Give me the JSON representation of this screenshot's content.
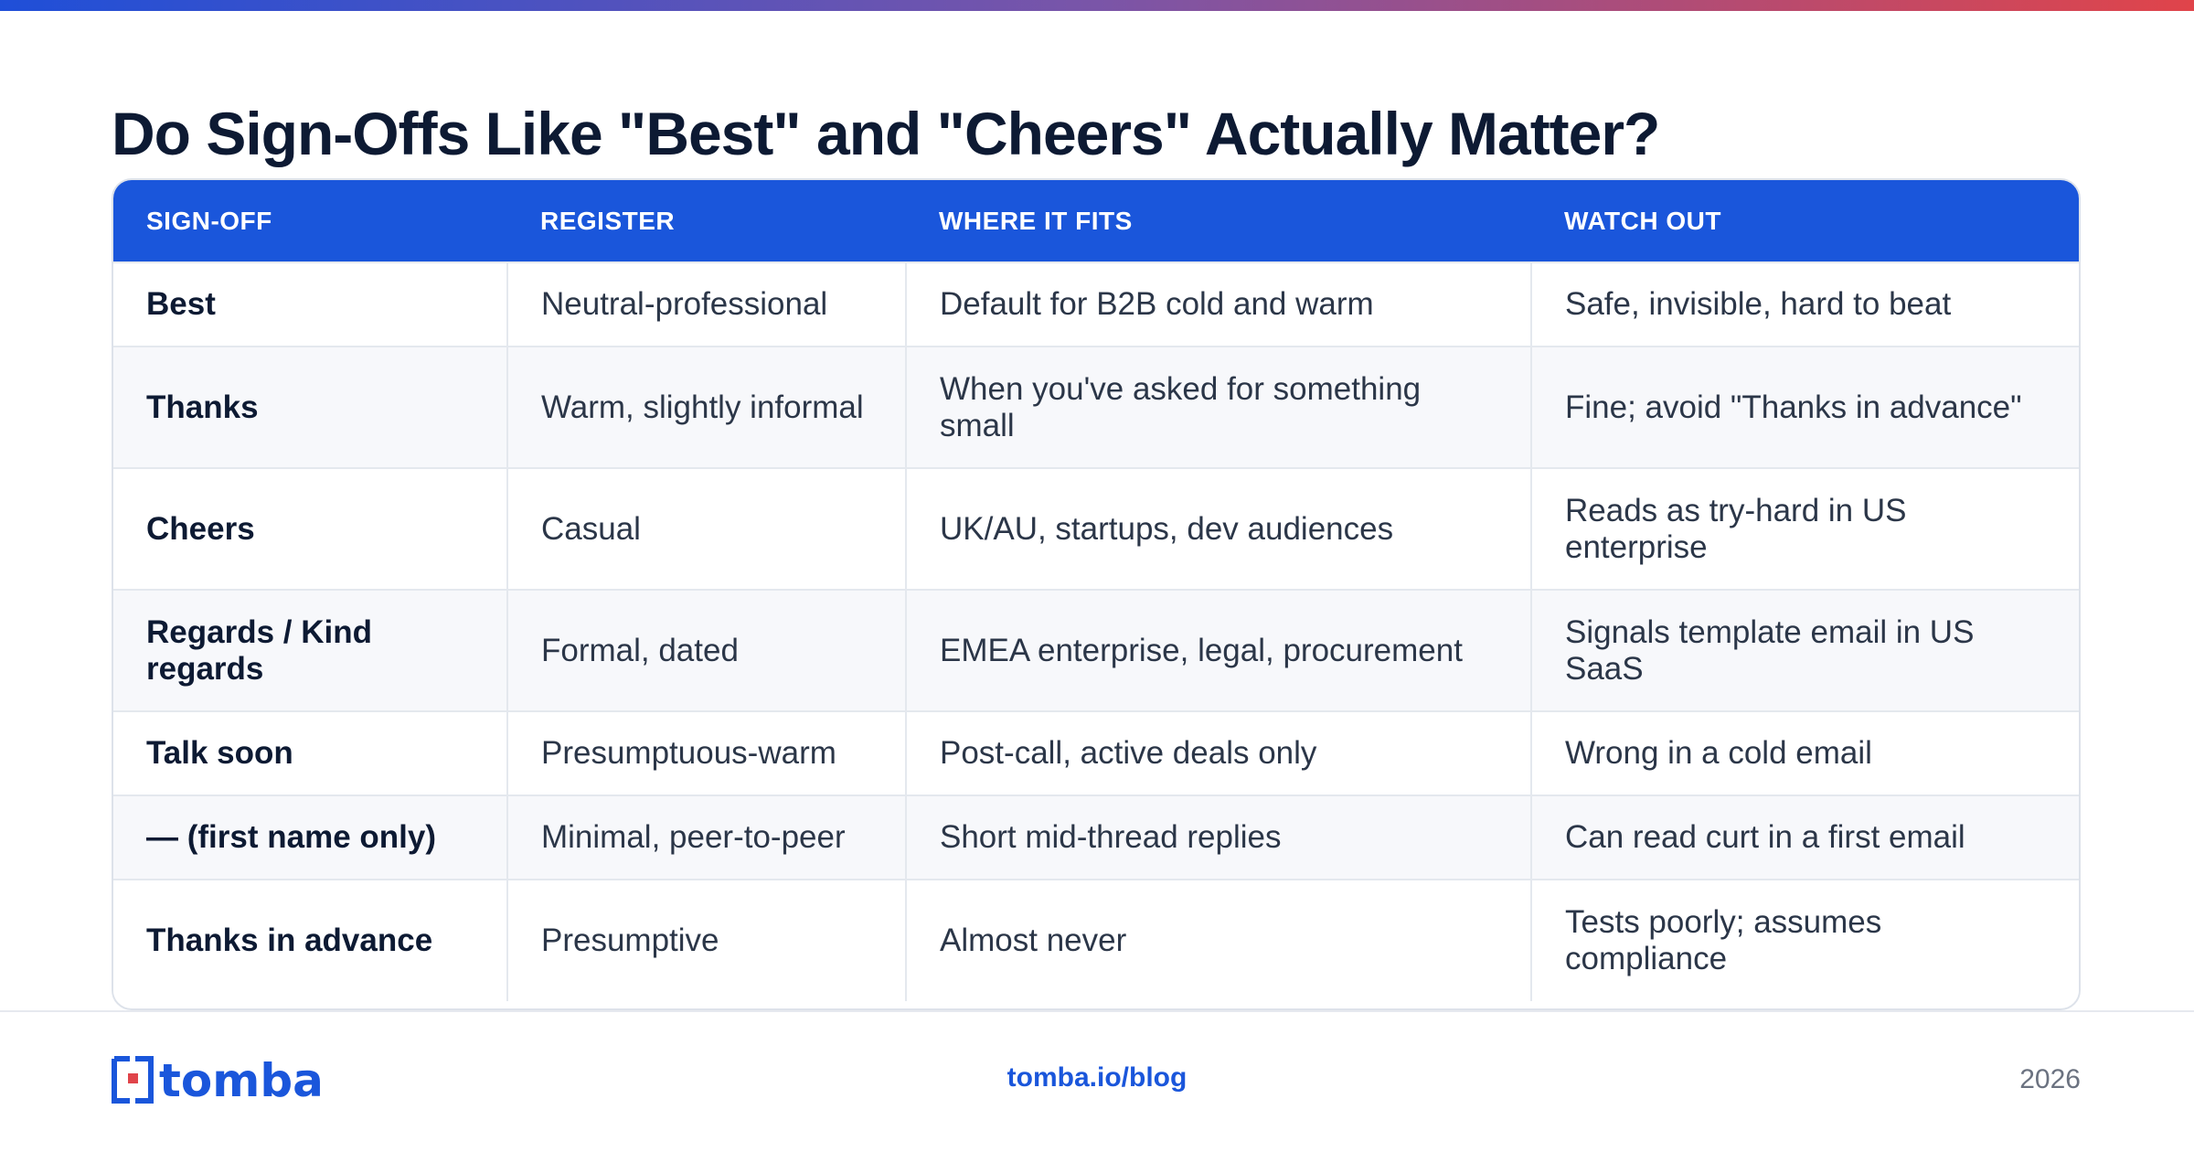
{
  "title": "Do Sign-Offs Like \"Best\" and \"Cheers\" Actually Matter?",
  "colors": {
    "header_bg": "#1a56db",
    "accent_gradient": [
      "#1f4fd8",
      "#7a55a8",
      "#e0444a"
    ],
    "link": "#1a56db"
  },
  "table": {
    "headers": [
      "SIGN-OFF",
      "REGISTER",
      "WHERE IT FITS",
      "WATCH OUT"
    ],
    "rows": [
      [
        "Best",
        "Neutral-professional",
        "Default for B2B cold and warm",
        "Safe, invisible, hard to beat"
      ],
      [
        "Thanks",
        "Warm, slightly informal",
        "When you've asked for something small",
        "Fine; avoid \"Thanks in advance\""
      ],
      [
        "Cheers",
        "Casual",
        "UK/AU, startups, dev audiences",
        "Reads as try-hard in US enterprise"
      ],
      [
        "Regards / Kind regards",
        "Formal, dated",
        "EMEA enterprise, legal, procurement",
        "Signals template email in US SaaS"
      ],
      [
        "Talk soon",
        "Presumptuous-warm",
        "Post-call, active deals only",
        "Wrong in a cold email"
      ],
      [
        "— (first name only)",
        "Minimal, peer-to-peer",
        "Short mid-thread replies",
        "Can read curt in a first email"
      ],
      [
        "Thanks in advance",
        "Presumptive",
        "Almost never",
        "Tests poorly; assumes compliance"
      ]
    ]
  },
  "footer": {
    "logo_text": "tomba",
    "logo_icon": "tomba-logo-icon",
    "link": "tomba.io/blog",
    "year": "2026"
  }
}
